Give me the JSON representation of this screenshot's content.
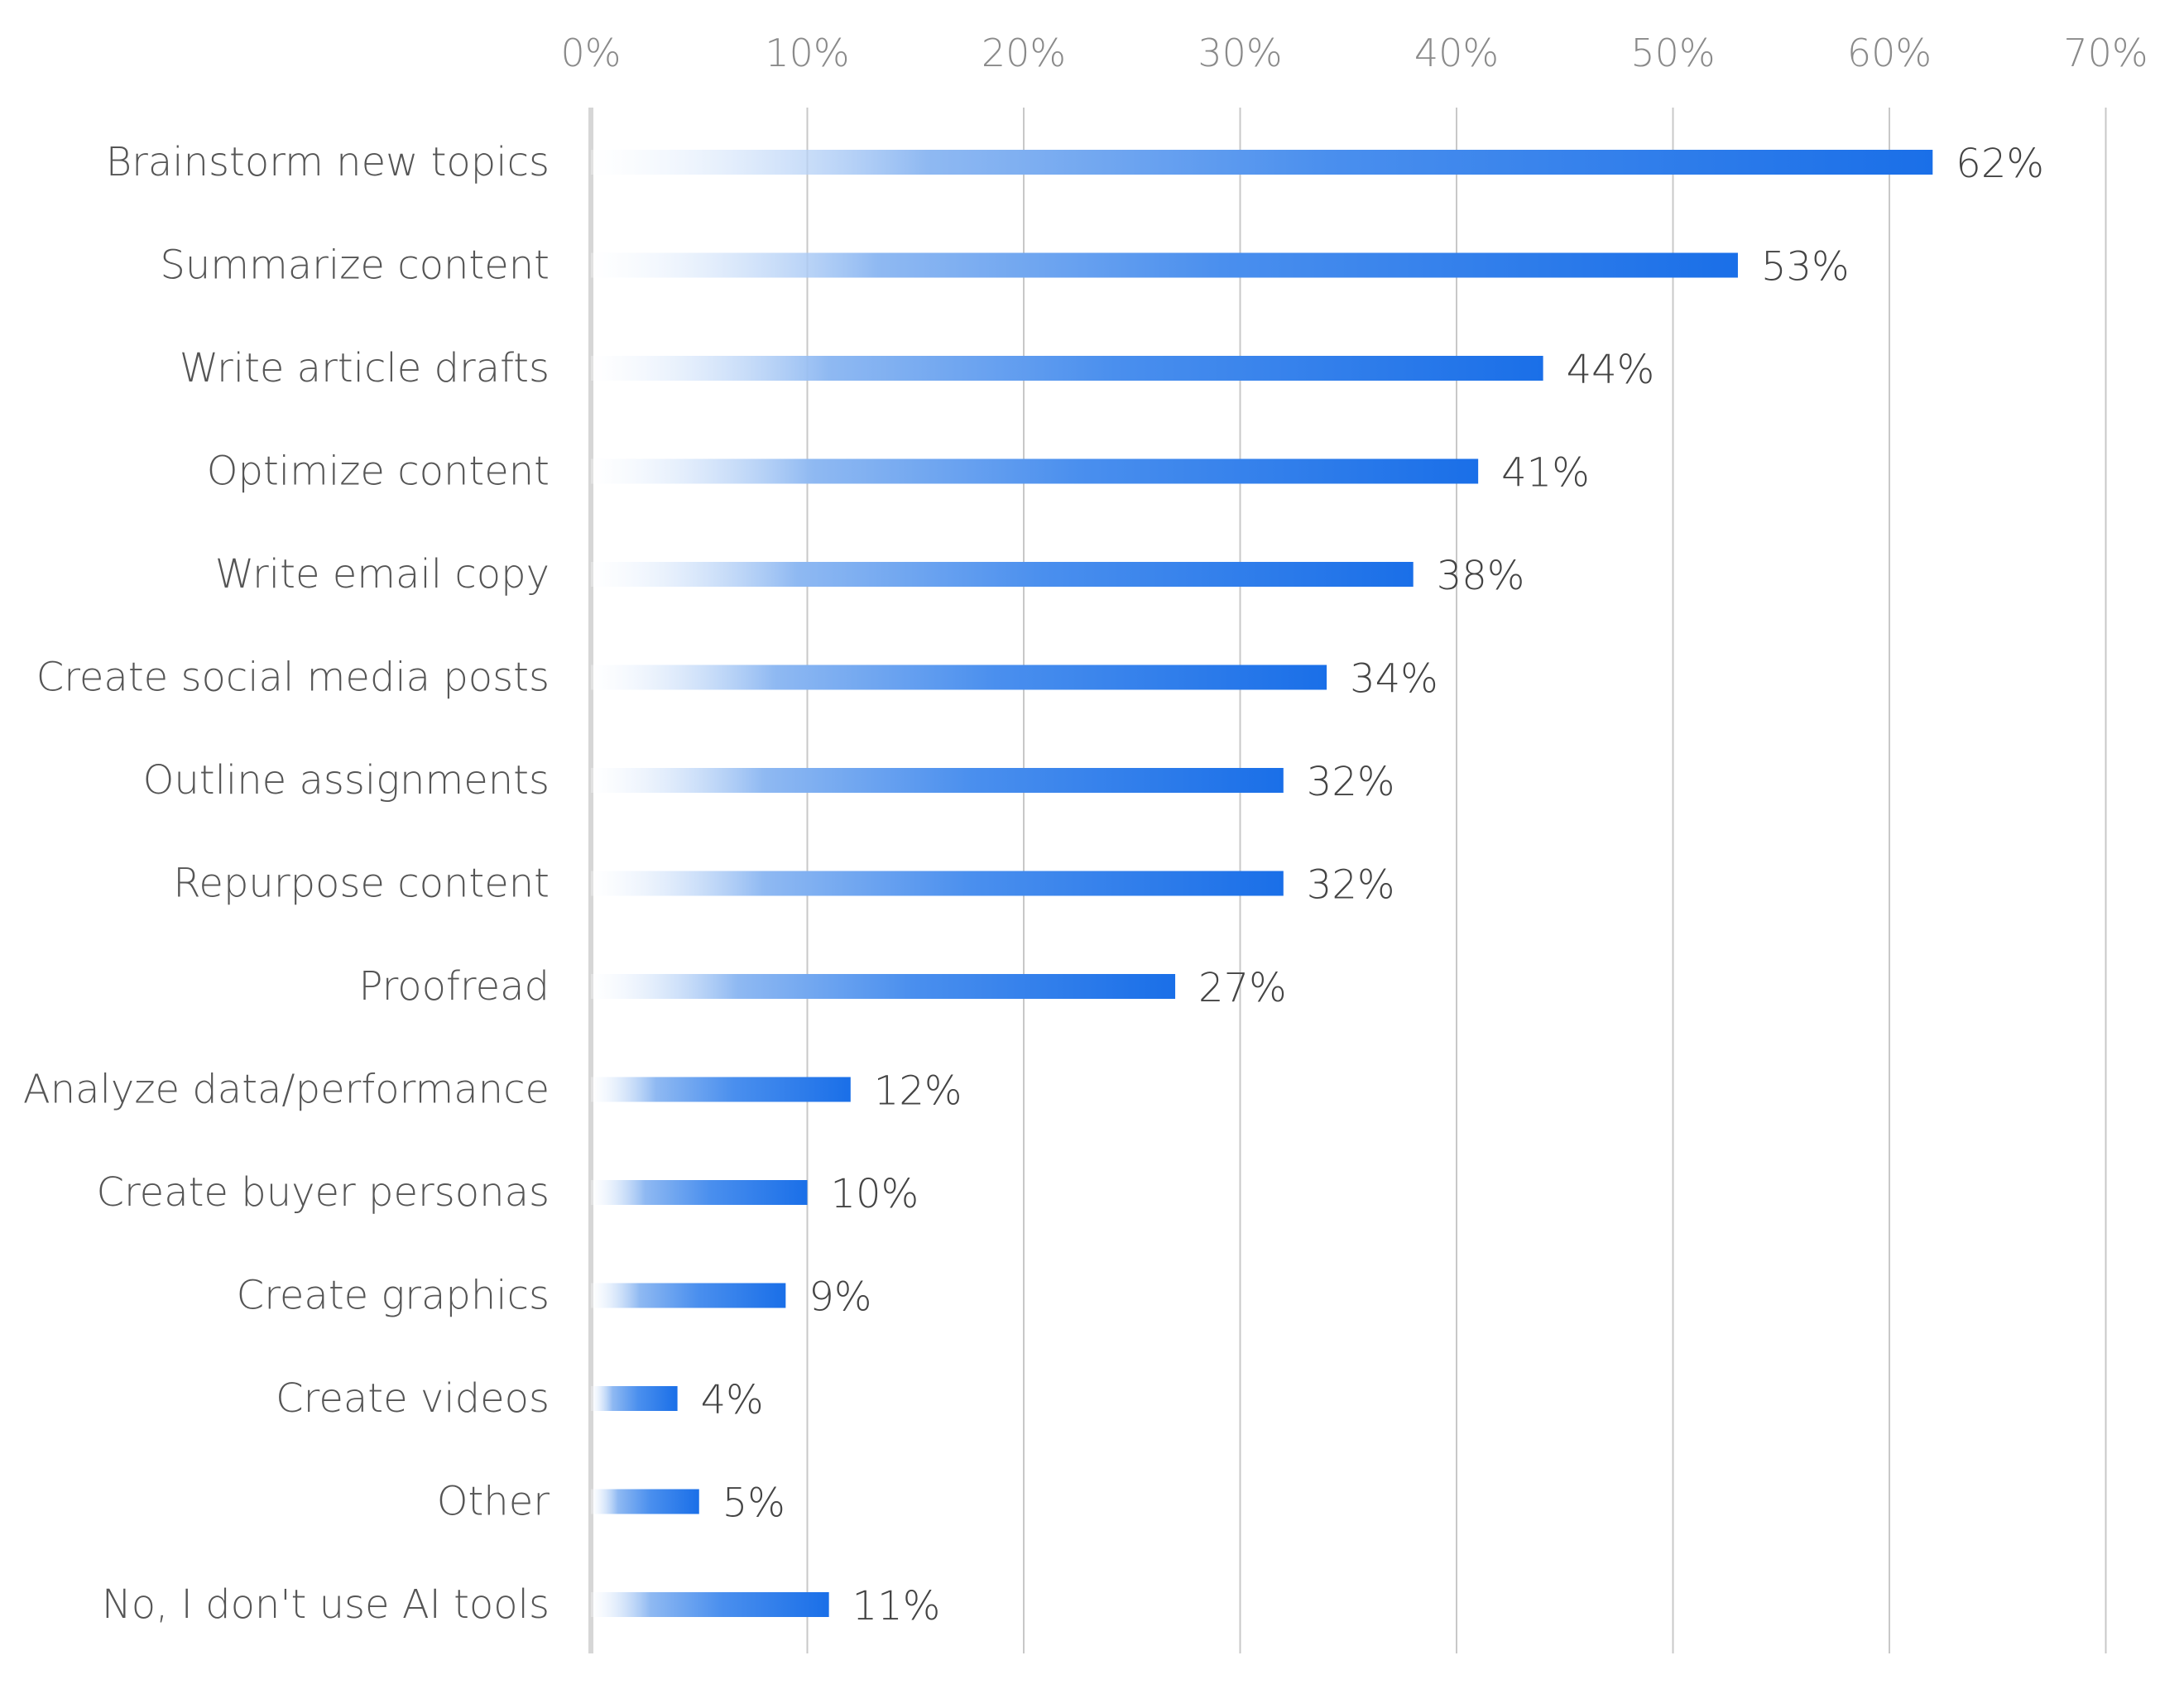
{
  "chart_data": {
    "type": "bar",
    "orientation": "horizontal",
    "categories": [
      "Brainstorm new topics",
      "Summarize content",
      "Write article drafts",
      "Optimize content",
      "Write email copy",
      "Create social media posts",
      "Outline assignments",
      "Repurpose content",
      "Proofread",
      "Analyze data/performance",
      "Create buyer personas",
      "Create graphics",
      "Create videos",
      "Other",
      "No, I don't use AI tools"
    ],
    "values": [
      62,
      53,
      44,
      41,
      38,
      34,
      32,
      32,
      27,
      12,
      10,
      9,
      4,
      5,
      11
    ],
    "value_labels": [
      "62%",
      "53%",
      "44%",
      "41%",
      "38%",
      "34%",
      "32%",
      "32%",
      "27%",
      "12%",
      "10%",
      "9%",
      "4%",
      "5%",
      "11%"
    ],
    "x_ticks": [
      0,
      10,
      20,
      30,
      40,
      50,
      60,
      70
    ],
    "x_tick_labels": [
      "0%",
      "10%",
      "20%",
      "30%",
      "40%",
      "50%",
      "60%",
      "70%"
    ],
    "xlim": [
      0,
      70
    ],
    "x_axis_position": "top",
    "grid": true,
    "title": "",
    "xlabel": "",
    "ylabel": "",
    "colors": {
      "bar_start": "#ffffff",
      "bar_end": "#1a6fe8",
      "grid": "#c8c8c8",
      "axis": "#d6d6d6"
    }
  }
}
